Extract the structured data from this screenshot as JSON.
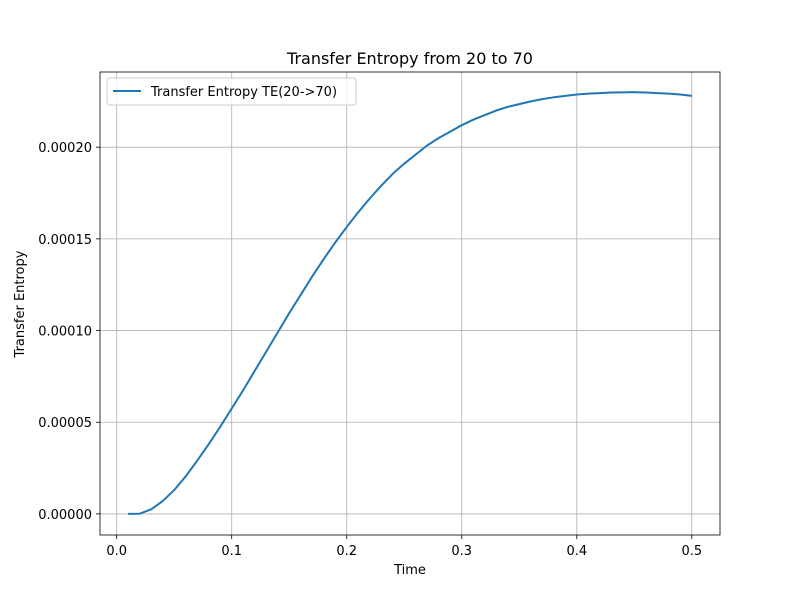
{
  "chart_data": {
    "type": "line",
    "title": "Transfer Entropy from 20 to 70",
    "xlabel": "Time",
    "ylabel": "Transfer Entropy",
    "xlim": [
      -0.0145,
      0.5245
    ],
    "ylim": [
      -1.15e-05,
      0.000241
    ],
    "xticks": [
      0.0,
      0.1,
      0.2,
      0.3,
      0.4,
      0.5
    ],
    "xtick_labels": [
      "0.0",
      "0.1",
      "0.2",
      "0.3",
      "0.4",
      "0.5"
    ],
    "yticks": [
      0.0,
      5e-05,
      0.0001,
      0.00015,
      0.0002
    ],
    "ytick_labels": [
      "0.00000",
      "0.00005",
      "0.00010",
      "0.00015",
      "0.00020"
    ],
    "grid": true,
    "legend_position": "upper left",
    "series": [
      {
        "name": "Transfer Entropy TE(20->70)",
        "color": "#1f77b4",
        "x": [
          0.01,
          0.02,
          0.03,
          0.04,
          0.05,
          0.06,
          0.07,
          0.08,
          0.09,
          0.1,
          0.11,
          0.12,
          0.13,
          0.14,
          0.15,
          0.16,
          0.17,
          0.18,
          0.19,
          0.2,
          0.21,
          0.22,
          0.23,
          0.24,
          0.25,
          0.26,
          0.27,
          0.28,
          0.29,
          0.3,
          0.31,
          0.32,
          0.33,
          0.34,
          0.35,
          0.36,
          0.37,
          0.38,
          0.39,
          0.4,
          0.41,
          0.42,
          0.43,
          0.44,
          0.45,
          0.46,
          0.47,
          0.48,
          0.49,
          0.5
        ],
        "y": [
          0.0,
          1e-07,
          2.5e-06,
          7e-06,
          1.3e-05,
          2.05e-05,
          2.9e-05,
          3.8e-05,
          4.75e-05,
          5.75e-05,
          6.75e-05,
          7.8e-05,
          8.85e-05,
          9.9e-05,
          0.0001095,
          0.0001195,
          0.0001295,
          0.000139,
          0.000148,
          0.0001565,
          0.0001645,
          0.000172,
          0.000179,
          0.0001855,
          0.000191,
          0.000196,
          0.000201,
          0.000205,
          0.0002085,
          0.000212,
          0.000215,
          0.0002175,
          0.00022,
          0.000222,
          0.0002235,
          0.000225,
          0.0002262,
          0.0002272,
          0.000228,
          0.0002287,
          0.0002292,
          0.0002295,
          0.0002298,
          0.0002299,
          0.00023,
          0.0002298,
          0.0002295,
          0.0002292,
          0.0002287,
          0.000228
        ]
      }
    ]
  }
}
